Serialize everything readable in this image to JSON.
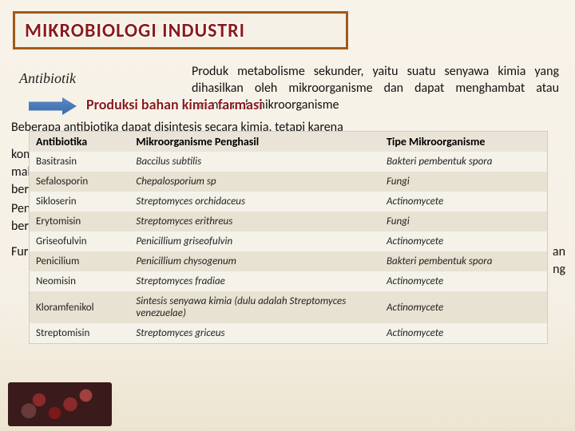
{
  "title": "MIKROBIOLOGI  INDUSTRI",
  "antibiotik_label": "Antibiotik",
  "description": "Produk metabolisme sekunder, yaitu suatu senyawa kimia yang dihasilkan oleh mikroorganisme dan dapat menghambat atau membunuh mikroorganisme",
  "produksi": "Produksi bahan kimia farmasi",
  "beberapa": "Beberapa antibiotika dapat disintesis secara kimia, tetapi karena",
  "bg": {
    "kom": "kom",
    "mal": "mal",
    "bers": "bers",
    "pen": "Pen",
    "ber2": "ber",
    "fur": "Fur",
    "r1": "an",
    "r2": "ng"
  },
  "table": {
    "headers": [
      "Antibiotika",
      "Mikroorganisme Penghasil",
      "Tipe Mikroorganisme"
    ],
    "rows": [
      {
        "a": "Basitrasin",
        "b": "Baccilus subtilis",
        "c": "Bakteri pembentuk spora",
        "c_ital": false
      },
      {
        "a": "Sefalosporin",
        "b": "Chepalosporium sp",
        "c": "Fungi",
        "c_ital": false
      },
      {
        "a": "Sikloserin",
        "b": "Streptomyces orchidaceus",
        "c": "Actinomycete",
        "c_ital": true
      },
      {
        "a": "Erytomisin",
        "b": "Streptomyces erithreus",
        "c": "Fungi",
        "c_ital": false
      },
      {
        "a": "Griseofulvin",
        "b": "Penicillium griseofulvin",
        "c": "Actinomycete",
        "c_ital": true
      },
      {
        "a": "Penicilium",
        "b": "Penicillium chysogenum",
        "c": "Bakteri pembentuk spora",
        "c_ital": false
      },
      {
        "a": "Neomisin",
        "b": "Streptomyces  fradiae",
        "c": "Actinomycete",
        "c_ital": true
      },
      {
        "a": "Kloramfenikol",
        "b": "Sintesis senyawa kimia (dulu adalah Streptomyces venezuelae)",
        "c": "Actinomycete",
        "c_ital": true
      },
      {
        "a": "Streptomisin",
        "b": "Streptomyces griceus",
        "c": "Actinomycete",
        "c_ital": true
      }
    ]
  }
}
